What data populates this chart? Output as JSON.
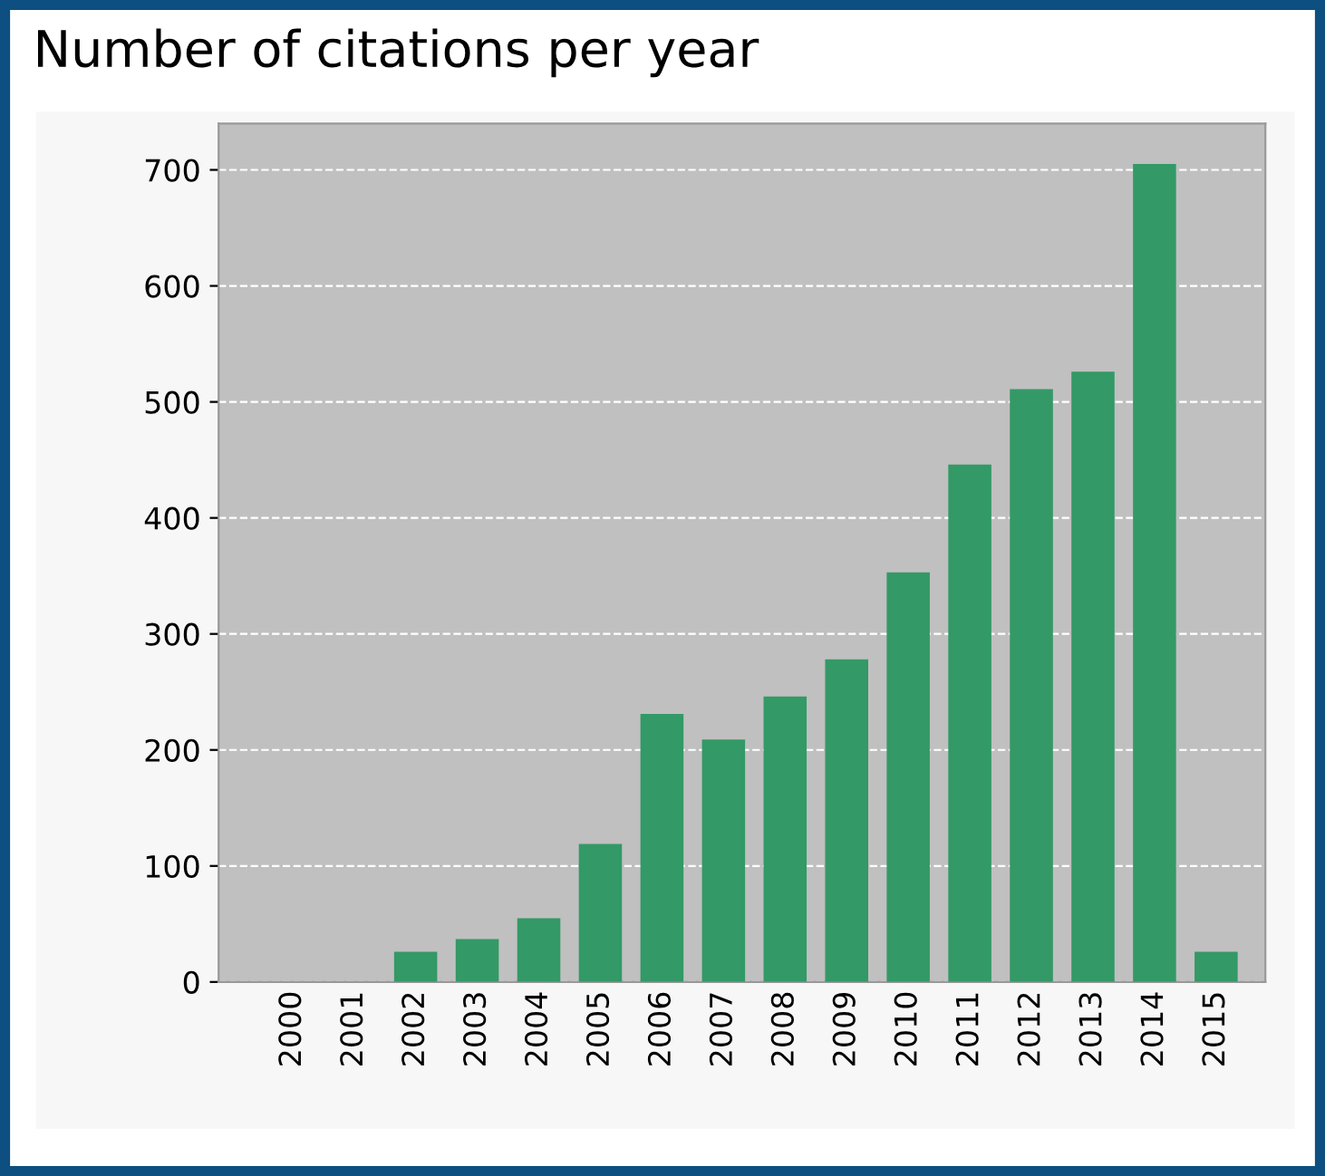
{
  "chart_data": {
    "type": "bar",
    "title": "Number of citations per year",
    "categories": [
      "2000",
      "2001",
      "2002",
      "2003",
      "2004",
      "2005",
      "2006",
      "2007",
      "2008",
      "2009",
      "2010",
      "2011",
      "2012",
      "2013",
      "2014",
      "2015"
    ],
    "values": [
      0,
      0,
      26,
      37,
      55,
      119,
      231,
      209,
      246,
      278,
      353,
      446,
      511,
      526,
      705,
      26
    ],
    "color": "#339966",
    "ylim": [
      0,
      740
    ],
    "yticks": [
      0,
      100,
      200,
      300,
      400,
      500,
      600,
      700
    ],
    "grid": "y"
  }
}
